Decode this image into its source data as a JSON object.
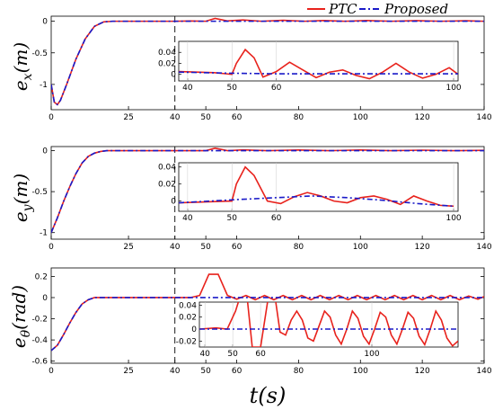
{
  "legend": {
    "ptc": "PTC",
    "proposed": "Proposed"
  },
  "xlabel": "t(s)",
  "colors": {
    "ptc": "#e8221c",
    "proposed": "#1a1ac8",
    "dashed_marker": "#000000"
  },
  "chart_data": [
    {
      "type": "line",
      "name": "ex",
      "ylabel": "e_x(m)",
      "xlim": [
        0,
        140
      ],
      "ylim": [
        -1.4,
        0.08
      ],
      "xticks": [
        0,
        25,
        40,
        50,
        60,
        80,
        100,
        120,
        140
      ],
      "yticks": [
        0,
        -0.5,
        -1
      ],
      "ytick_labels": [
        "0",
        "-0.5",
        "-1"
      ],
      "vline_x": 40,
      "series": [
        {
          "name": "PTC",
          "x": [
            0,
            1,
            2,
            3,
            5,
            8,
            11,
            14,
            17,
            20,
            30,
            40,
            45,
            50,
            53,
            57,
            62,
            68,
            75,
            82,
            88,
            95,
            102,
            110,
            118,
            126,
            134,
            140
          ],
          "y": [
            -1.0,
            -1.28,
            -1.32,
            -1.25,
            -1.0,
            -0.6,
            -0.28,
            -0.08,
            -0.01,
            0,
            0,
            0,
            0.005,
            0.0,
            0.045,
            0.005,
            0.02,
            0.0,
            0.015,
            0.0,
            0.012,
            0.0,
            0.012,
            0.0,
            0.01,
            0.0,
            0.008,
            0.0
          ]
        },
        {
          "name": "Proposed",
          "x": [
            0,
            1,
            2,
            3,
            5,
            8,
            11,
            14,
            17,
            20,
            30,
            40,
            60,
            80,
            100,
            120,
            140
          ],
          "y": [
            -1.0,
            -1.28,
            -1.32,
            -1.25,
            -1.0,
            -0.6,
            -0.28,
            -0.08,
            -0.01,
            0,
            0,
            0,
            0,
            0,
            0,
            0,
            0
          ]
        }
      ],
      "inset": {
        "xlim": [
          38,
          101
        ],
        "ylim": [
          -0.012,
          0.06
        ],
        "xticks": [
          40,
          50,
          60,
          100
        ],
        "yticks": [
          0,
          0.02,
          0.04
        ],
        "ytick_labels": [
          "0",
          "0.02",
          "0.04"
        ],
        "series": [
          {
            "name": "PTC",
            "x": [
              38,
              42,
              46,
              50,
              51,
              53,
              55,
              57,
              60,
              63,
              66,
              69,
              72,
              75,
              78,
              81,
              84,
              87,
              90,
              93,
              96,
              99,
              101
            ],
            "y": [
              0.005,
              0.004,
              0.003,
              0.0,
              0.02,
              0.045,
              0.03,
              -0.005,
              0.005,
              0.022,
              0.008,
              -0.006,
              0.004,
              0.008,
              -0.002,
              -0.008,
              0.004,
              0.02,
              0.004,
              -0.007,
              0.0,
              0.012,
              0.0
            ]
          },
          {
            "name": "Proposed",
            "x": [
              38,
              50,
              60,
              70,
              80,
              90,
              101
            ],
            "y": [
              0.004,
              0.002,
              0.001,
              0.001,
              0.001,
              0.001,
              0.001
            ]
          }
        ]
      }
    },
    {
      "type": "line",
      "name": "ey",
      "ylabel": "e_y(m)",
      "xlim": [
        0,
        140
      ],
      "ylim": [
        -1.08,
        0.05
      ],
      "xticks": [
        0,
        25,
        40,
        50,
        60,
        80,
        100,
        120,
        140
      ],
      "yticks": [
        0,
        -0.5,
        -1
      ],
      "ytick_labels": [
        "0",
        "-0.5",
        "-1"
      ],
      "vline_x": 40,
      "series": [
        {
          "name": "PTC",
          "x": [
            0,
            2,
            4,
            6,
            8,
            10,
            12,
            14,
            16,
            18,
            20,
            30,
            40,
            45,
            50,
            53,
            57,
            62,
            70,
            80,
            90,
            100,
            110,
            120,
            130,
            140
          ],
          "y": [
            -1.0,
            -0.82,
            -0.62,
            -0.44,
            -0.28,
            -0.15,
            -0.07,
            -0.03,
            -0.01,
            0,
            0,
            0,
            0,
            0.0,
            0.0,
            0.03,
            0.0,
            0.01,
            0.0,
            0.008,
            0.0,
            0.008,
            0.0,
            0.006,
            0.0,
            0.004
          ]
        },
        {
          "name": "Proposed",
          "x": [
            0,
            2,
            4,
            6,
            8,
            10,
            12,
            14,
            16,
            18,
            20,
            30,
            40,
            60,
            80,
            100,
            120,
            140
          ],
          "y": [
            -1.0,
            -0.82,
            -0.62,
            -0.44,
            -0.28,
            -0.15,
            -0.07,
            -0.03,
            -0.01,
            0,
            0,
            0,
            0,
            0,
            0,
            0,
            0,
            0
          ]
        }
      ],
      "inset": {
        "xlim": [
          38,
          101
        ],
        "ylim": [
          -0.012,
          0.045
        ],
        "xticks": [
          40,
          50,
          60,
          100
        ],
        "yticks": [
          0,
          0.02,
          0.04
        ],
        "ytick_labels": [
          "0",
          "0.02",
          "0.04"
        ],
        "series": [
          {
            "name": "PTC",
            "x": [
              38,
              44,
              50,
              51,
              53,
              55,
              58,
              61,
              64,
              67,
              70,
              73,
              76,
              79,
              82,
              85,
              88,
              91,
              94,
              97,
              100
            ],
            "y": [
              -0.002,
              -0.001,
              0.0,
              0.02,
              0.04,
              0.03,
              0.0,
              -0.003,
              0.005,
              0.01,
              0.006,
              0.0,
              -0.002,
              0.004,
              0.006,
              0.002,
              -0.004,
              0.006,
              0.0,
              -0.005,
              -0.006
            ]
          },
          {
            "name": "Proposed",
            "x": [
              38,
              45,
              52,
              60,
              68,
              76,
              84,
              92,
              100
            ],
            "y": [
              -0.002,
              0.0,
              0.002,
              0.004,
              0.006,
              0.004,
              0.001,
              -0.003,
              -0.006
            ]
          }
        ]
      }
    },
    {
      "type": "line",
      "name": "etheta",
      "ylabel": "e_θ(rad)",
      "xlim": [
        0,
        140
      ],
      "ylim": [
        -0.62,
        0.28
      ],
      "xticks": [
        0,
        25,
        40,
        50,
        60,
        80,
        100,
        120,
        140
      ],
      "yticks": [
        0.2,
        0,
        -0.2,
        -0.4,
        -0.6
      ],
      "ytick_labels": [
        "0.2",
        "0",
        "-0.2",
        "-0.4",
        "-0.6"
      ],
      "vline_x": 40,
      "series": [
        {
          "name": "PTC",
          "x": [
            0,
            2,
            4,
            6,
            8,
            10,
            12,
            14,
            16,
            18,
            20,
            30,
            40,
            45,
            48,
            51,
            54,
            57,
            60,
            63,
            66,
            69,
            72,
            75,
            78,
            81,
            84,
            87,
            90,
            93,
            96,
            99,
            102,
            105,
            108,
            111,
            114,
            117,
            120,
            123,
            126,
            129,
            132,
            135,
            138,
            140
          ],
          "y": [
            -0.5,
            -0.45,
            -0.35,
            -0.24,
            -0.14,
            -0.06,
            -0.02,
            0,
            0,
            0,
            0,
            0,
            0,
            0.0,
            0.02,
            0.22,
            0.22,
            0.02,
            -0.015,
            0.02,
            -0.02,
            0.02,
            -0.02,
            0.02,
            -0.02,
            0.02,
            -0.02,
            0.02,
            -0.02,
            0.02,
            -0.02,
            0.02,
            -0.02,
            0.02,
            -0.02,
            0.02,
            -0.02,
            0.02,
            -0.02,
            0.02,
            -0.02,
            0.02,
            -0.02,
            0.015,
            -0.015,
            0.01
          ]
        },
        {
          "name": "Proposed",
          "x": [
            0,
            2,
            4,
            6,
            8,
            10,
            12,
            14,
            16,
            18,
            20,
            30,
            40,
            60,
            80,
            100,
            120,
            140
          ],
          "y": [
            -0.5,
            -0.45,
            -0.35,
            -0.24,
            -0.14,
            -0.06,
            -0.02,
            0,
            0,
            0,
            0,
            0,
            0,
            0,
            0,
            0,
            0,
            0
          ]
        }
      ],
      "inset": {
        "xlim": [
          38,
          131
        ],
        "ylim": [
          -0.03,
          0.045
        ],
        "xticks": [
          40,
          50,
          60,
          100
        ],
        "yticks": [
          0.04,
          0.02,
          0,
          -0.02
        ],
        "ytick_labels": [
          "0.04",
          "0.02",
          "0",
          "-0.02"
        ],
        "series": [
          {
            "name": "PTC",
            "x": [
              38,
              44,
              48,
              51,
              53,
              55,
              57,
              60,
              63,
              65,
              67,
              69,
              71,
              73,
              75,
              77,
              79,
              81,
              83,
              85,
              87,
              89,
              91,
              93,
              95,
              97,
              99,
              101,
              103,
              105,
              107,
              109,
              111,
              113,
              115,
              117,
              119,
              121,
              123,
              125,
              127,
              129,
              131
            ],
            "y": [
              0.0,
              0.002,
              0.0,
              0.03,
              0.06,
              0.06,
              -0.03,
              -0.03,
              0.06,
              0.06,
              -0.005,
              -0.01,
              0.015,
              0.03,
              0.015,
              -0.015,
              -0.02,
              0.005,
              0.03,
              0.02,
              -0.01,
              -0.025,
              0.0,
              0.03,
              0.018,
              -0.012,
              -0.025,
              0.0,
              0.028,
              0.02,
              -0.01,
              -0.025,
              0.0,
              0.028,
              0.018,
              -0.012,
              -0.026,
              0.0,
              0.03,
              0.015,
              -0.015,
              -0.028,
              -0.02
            ]
          },
          {
            "name": "Proposed",
            "x": [
              38,
              60,
              80,
              100,
              120,
              131
            ],
            "y": [
              0,
              0,
              0,
              0,
              0,
              0
            ]
          }
        ]
      }
    }
  ]
}
